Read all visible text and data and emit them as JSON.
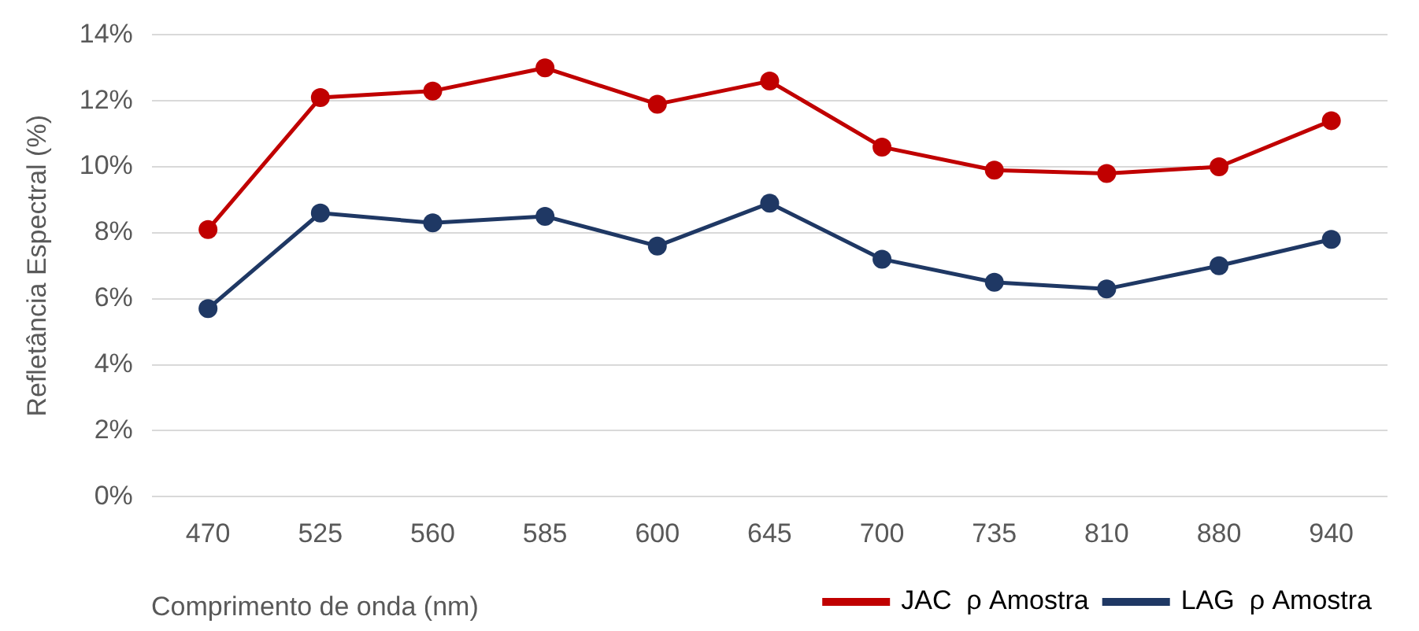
{
  "chart_data": {
    "type": "line",
    "xlabel": "Comprimento de onda (nm)",
    "ylabel": "Refletância Espectral (%)",
    "categories": [
      "470",
      "525",
      "560",
      "585",
      "600",
      "645",
      "700",
      "735",
      "810",
      "880",
      "940"
    ],
    "series": [
      {
        "name": "JAC  ρ Amostra",
        "color": "#c00000",
        "values": [
          8.1,
          12.1,
          12.3,
          13.0,
          11.9,
          12.6,
          10.6,
          9.9,
          9.8,
          10.0,
          11.4
        ]
      },
      {
        "name": "LAG  ρ Amostra",
        "color": "#1f3864",
        "values": [
          5.7,
          8.6,
          8.3,
          8.5,
          7.6,
          8.9,
          7.2,
          6.5,
          6.3,
          7.0,
          7.8
        ]
      }
    ],
    "ylim": [
      0,
      14
    ],
    "yticks": [
      {
        "value": 0,
        "label": "0%"
      },
      {
        "value": 2,
        "label": "2%"
      },
      {
        "value": 4,
        "label": "4%"
      },
      {
        "value": 6,
        "label": "6%"
      },
      {
        "value": 8,
        "label": "8%"
      },
      {
        "value": 10,
        "label": "10%"
      },
      {
        "value": 12,
        "label": "12%"
      },
      {
        "value": 14,
        "label": "14%"
      }
    ],
    "grid": "y",
    "legend": "bottom right",
    "marker": "circle",
    "line_style": "solid"
  }
}
